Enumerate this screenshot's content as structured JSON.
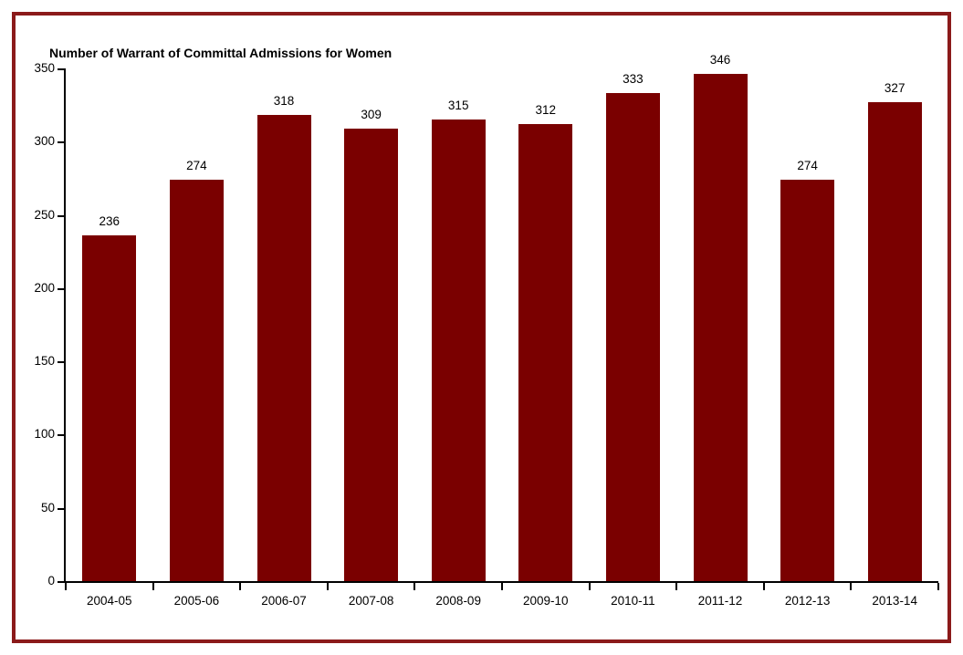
{
  "page": {
    "background_color": "#FFFFFF",
    "frame_border_color": "#8B1A1A",
    "axis_color": "#000000",
    "text_color": "#000000"
  },
  "chart_data": {
    "type": "bar",
    "title": "Number of Warrant of Committal Admissions for Women",
    "categories": [
      "2004-05",
      "2005-06",
      "2006-07",
      "2007-08",
      "2008-09",
      "2009-10",
      "2010-11",
      "2011-12",
      "2012-13",
      "2013-14"
    ],
    "values": [
      236,
      274,
      318,
      309,
      315,
      312,
      333,
      346,
      274,
      327
    ],
    "bar_color": "#7A0000",
    "xlabel": "",
    "ylabel": "",
    "ylim": [
      0,
      350
    ],
    "yticks": [
      0,
      50,
      100,
      150,
      200,
      250,
      300,
      350
    ],
    "grid": false,
    "legend_position": "none",
    "value_labels_shown": true
  }
}
